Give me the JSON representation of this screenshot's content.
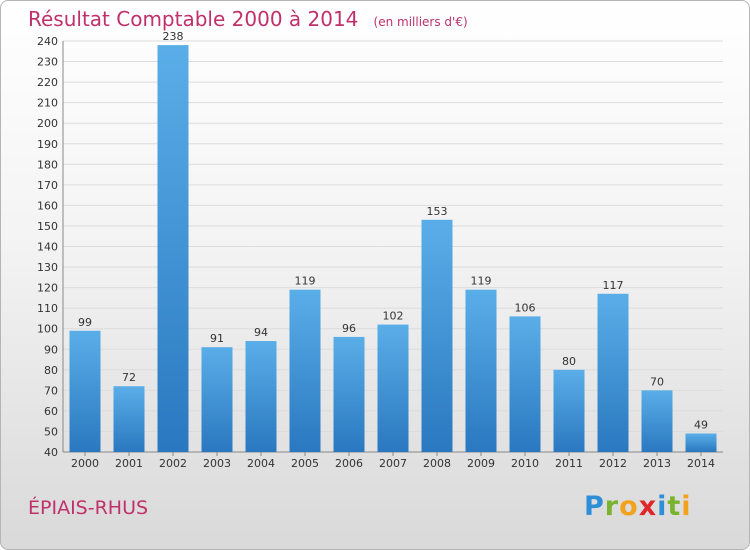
{
  "title": {
    "main": "Résultat Comptable 2000 à 2014",
    "unit": "(en milliers d'€)"
  },
  "place_name": "ÉPIAIS-RHUS",
  "logo": {
    "letters": [
      "P",
      "r",
      "o",
      "x",
      "i",
      "t",
      "i"
    ],
    "colors": [
      "#2e8fd6",
      "#7ab32e",
      "#f2a21d",
      "#e0262a",
      "#2e8fd6",
      "#7ab32e",
      "#f2a21d"
    ]
  },
  "colors": {
    "title": "#c0306a",
    "bar_light": "#5aaee8",
    "bar_dark": "#2a78c0",
    "grid": "#dcdcdc"
  },
  "chart_data": {
    "type": "bar",
    "title": "Résultat Comptable 2000 à 2014",
    "subtitle": "(en milliers d'€)",
    "xlabel": "",
    "ylabel": "",
    "ylim": [
      40,
      240
    ],
    "ytick_step": 10,
    "grid": true,
    "categories": [
      "2000",
      "2001",
      "2002",
      "2003",
      "2004",
      "2005",
      "2006",
      "2007",
      "2008",
      "2009",
      "2010",
      "2011",
      "2012",
      "2013",
      "2014"
    ],
    "values": [
      99,
      72,
      238,
      91,
      94,
      119,
      96,
      102,
      153,
      119,
      106,
      80,
      117,
      70,
      49
    ]
  }
}
